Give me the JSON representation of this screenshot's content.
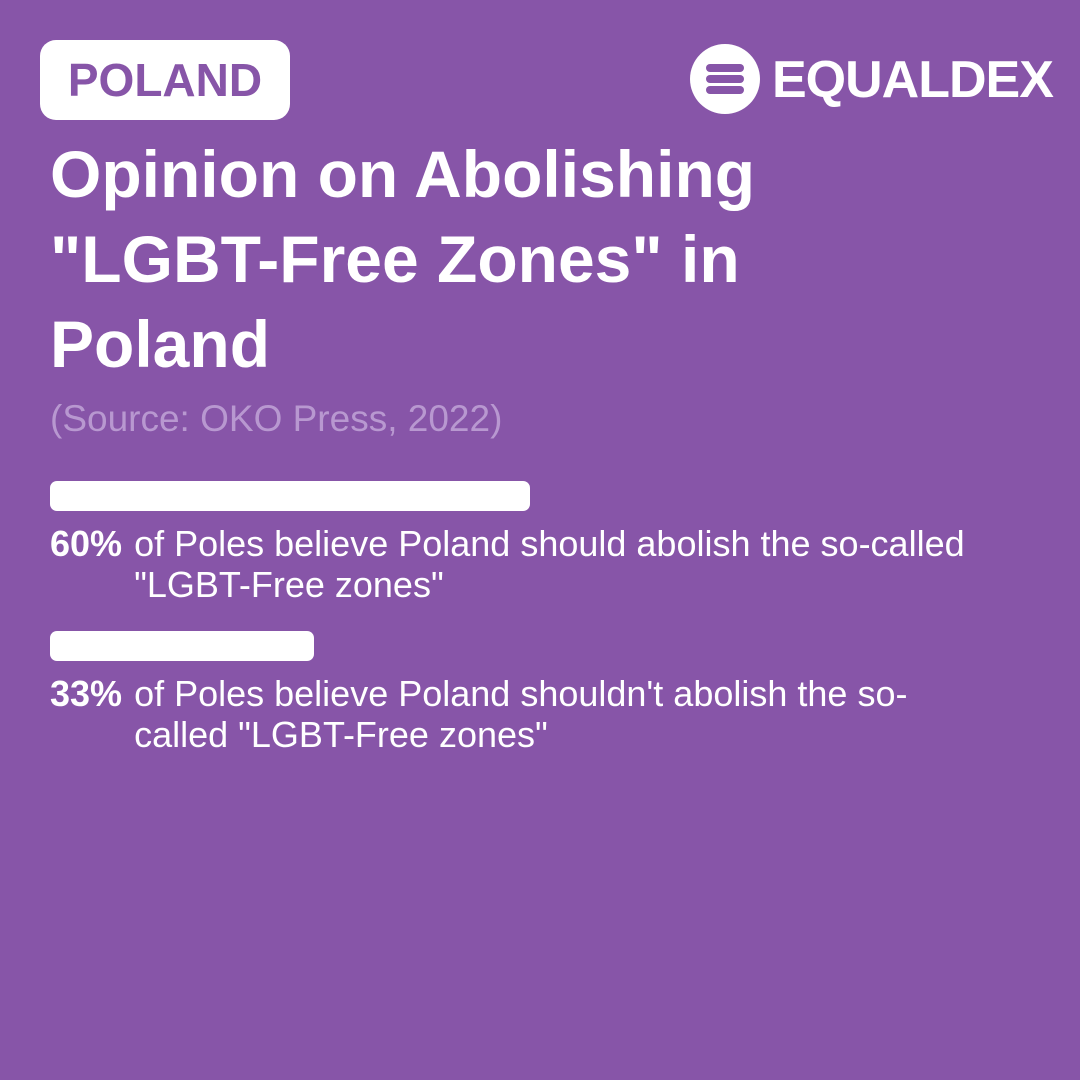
{
  "header": {
    "badge": "POLAND",
    "brand": "EQUALDEX"
  },
  "chart_data": {
    "type": "bar",
    "orientation": "horizontal",
    "title": "Opinion on Abolishing \"LGBT-Free Zones\" in Poland",
    "subtitle": "(Source: OKO Press, 2022)",
    "categories": [
      "of Poles believe Poland should abolish the so-called \"LGBT-Free zones\"",
      "of Poles believe Poland shouldn't abolish the so-called \"LGBT-Free zones\""
    ],
    "values": [
      60,
      33
    ],
    "value_labels": [
      "60%",
      "33%"
    ],
    "color": "#ffffff",
    "xlim": [
      0,
      100
    ]
  }
}
